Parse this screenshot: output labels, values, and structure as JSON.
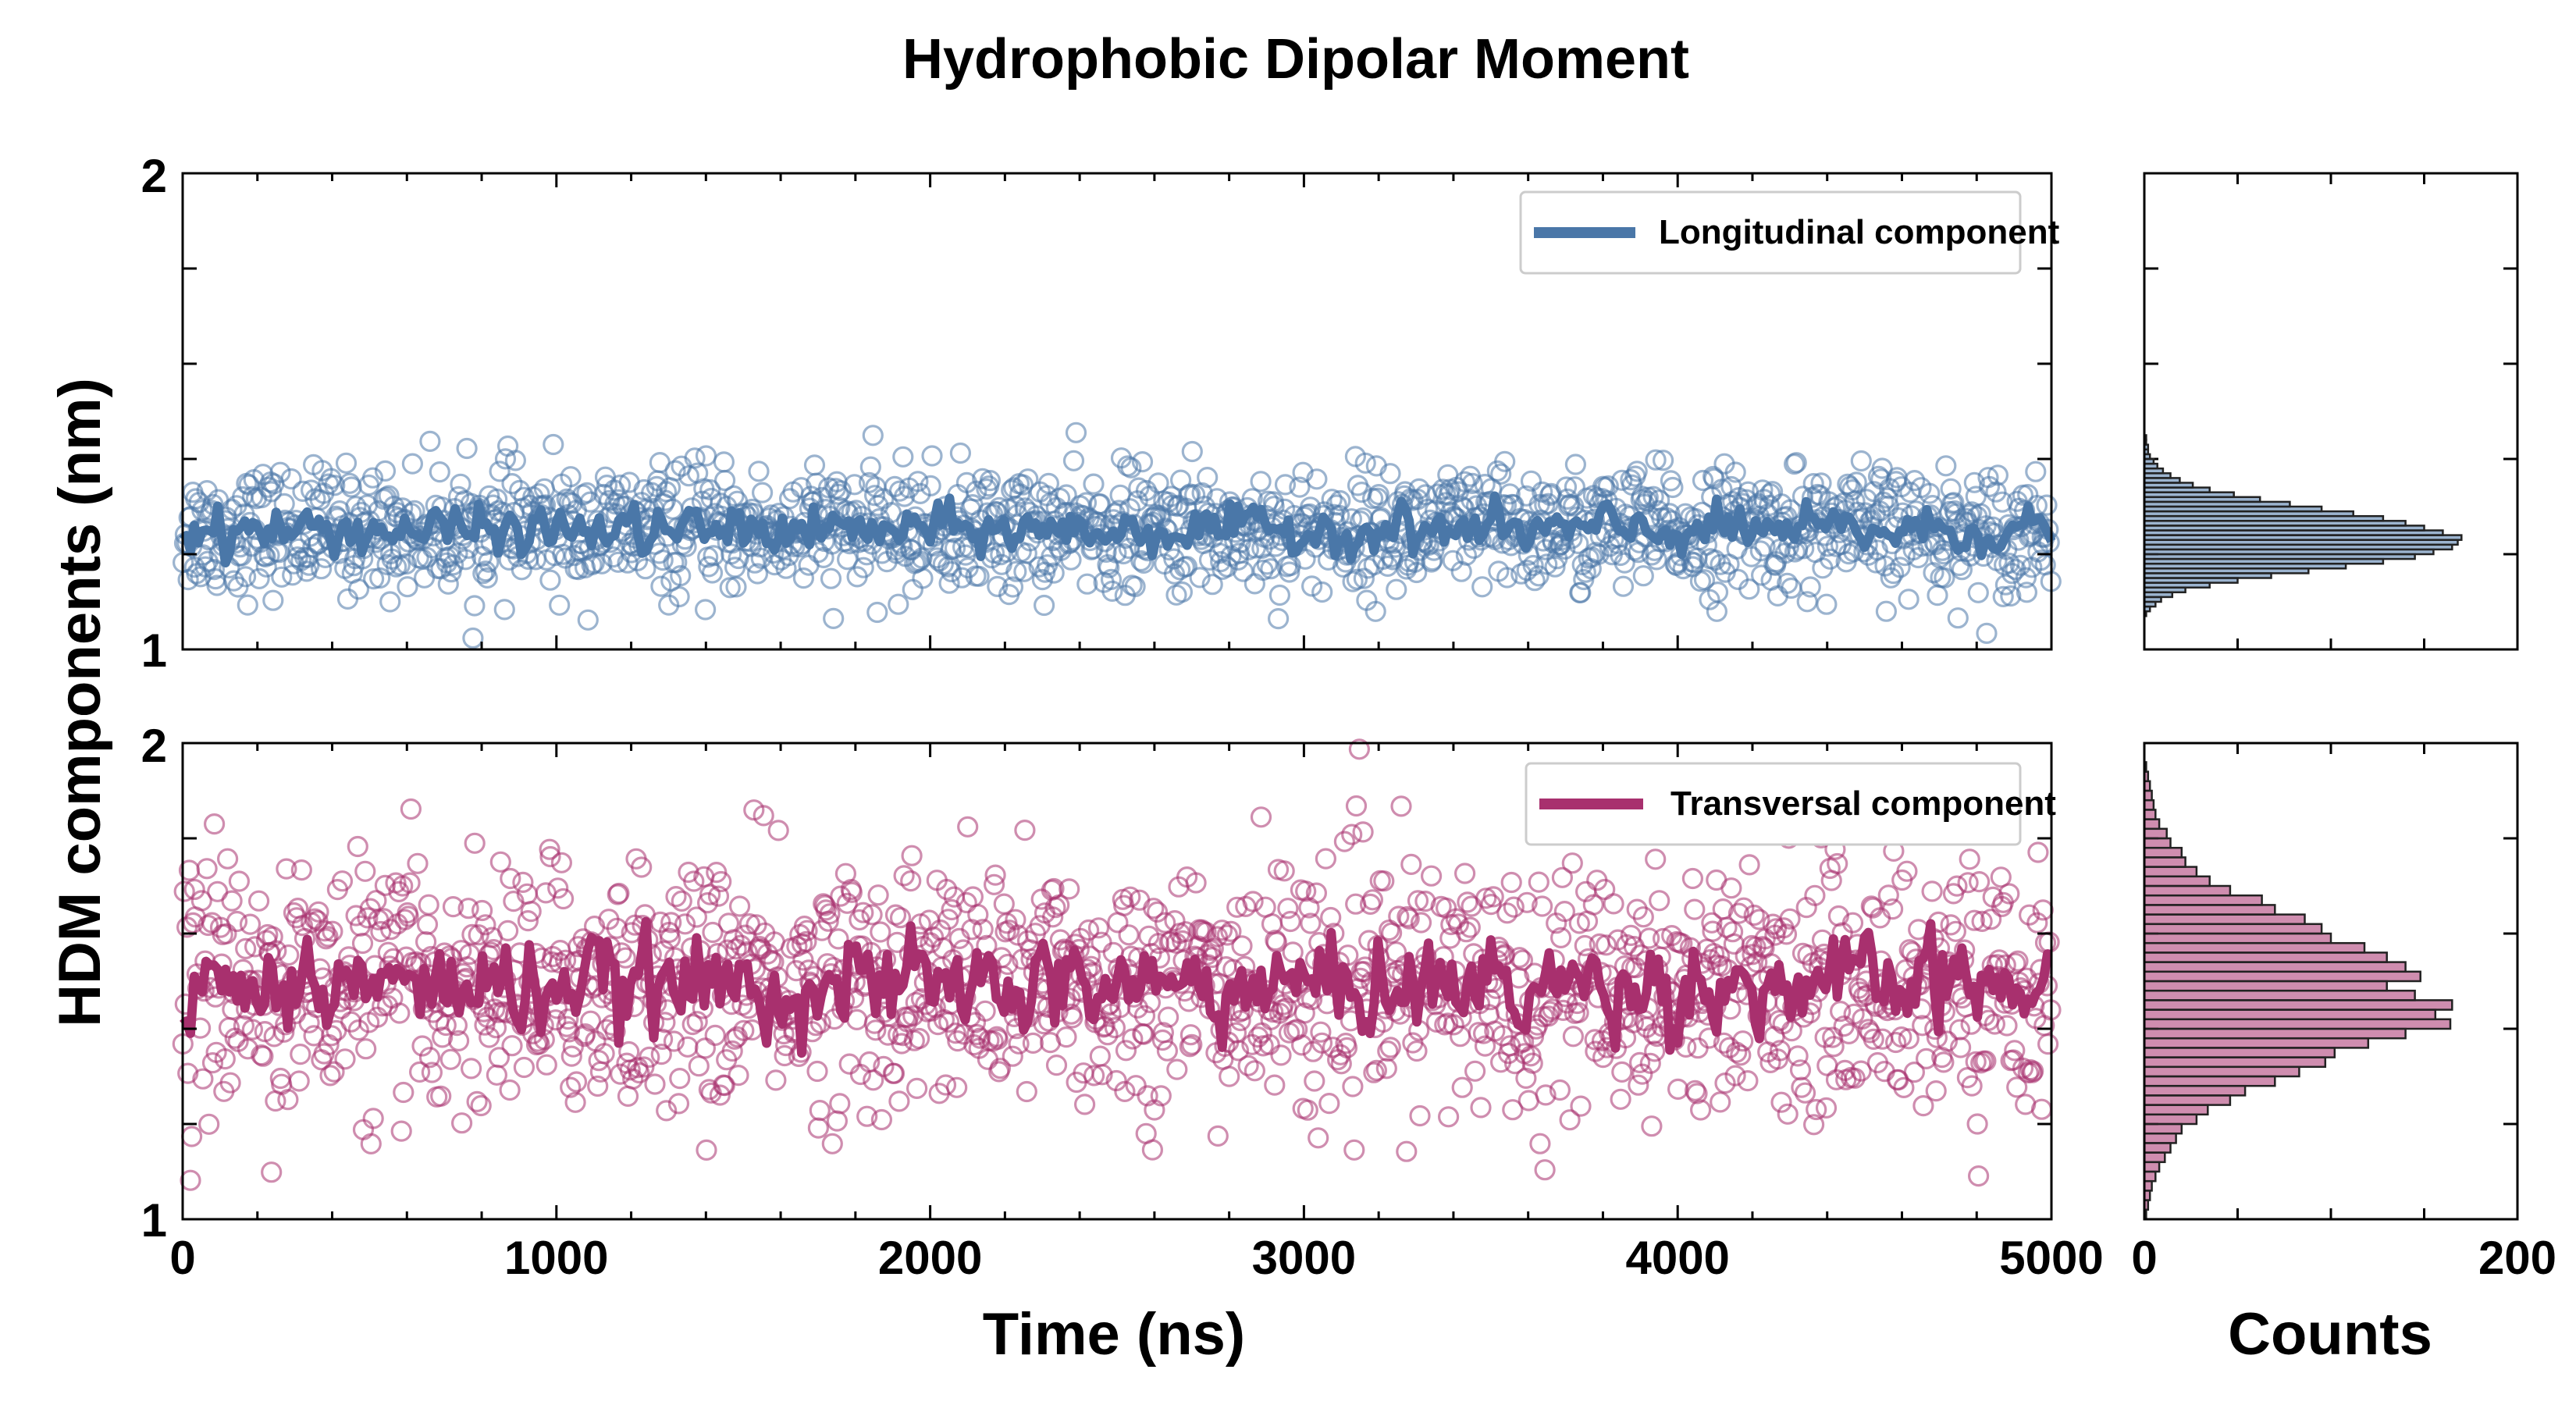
{
  "chart_data": {
    "title": "Hydrophobic Dipolar Moment",
    "ylabel": "HDM components (nm)",
    "colors": {
      "longitudinal": "#4a77a8",
      "transversal": "#a8306e"
    },
    "panels": [
      {
        "id": "longitudinal",
        "type": "scatter+line",
        "series_label": "Longitudinal component",
        "legend_position": "top-right",
        "x_range": [
          0,
          5000
        ],
        "ylim": [
          1,
          2
        ],
        "y_ticks": [
          "1",
          "2"
        ],
        "mean": 1.25,
        "scatter_sd": 0.065,
        "line_sd": 0.022,
        "n_points": 1500,
        "y_minor_ticks": [
          1.2,
          1.4,
          1.6,
          1.8
        ]
      },
      {
        "id": "transversal",
        "type": "scatter+line",
        "series_label": "Transversal component",
        "legend_position": "top-right",
        "x_range": [
          0,
          5000
        ],
        "ylim": [
          1,
          2
        ],
        "y_ticks": [
          "1",
          "2"
        ],
        "mean": 1.49,
        "scatter_sd": 0.13,
        "line_sd": 0.045,
        "n_points": 1500,
        "y_minor_ticks": [
          1.2,
          1.4,
          1.6,
          1.8
        ]
      }
    ],
    "x_ticks": [
      "0",
      "1000",
      "2000",
      "3000",
      "4000",
      "5000"
    ],
    "xlabel": "Time (ns)",
    "histograms": [
      {
        "id": "longitudinal",
        "type": "histogram-horizontal",
        "xlim": [
          0,
          200
        ],
        "bin_centers": [
          1.005,
          1.015,
          1.025,
          1.035,
          1.045,
          1.055,
          1.065,
          1.075,
          1.085,
          1.095,
          1.105,
          1.115,
          1.125,
          1.135,
          1.145,
          1.155,
          1.165,
          1.175,
          1.185,
          1.195,
          1.205,
          1.215,
          1.225,
          1.235,
          1.245,
          1.255,
          1.265,
          1.275,
          1.285,
          1.295,
          1.305,
          1.315,
          1.325,
          1.335,
          1.345,
          1.355,
          1.365,
          1.375,
          1.385,
          1.395,
          1.405,
          1.415,
          1.425,
          1.435,
          1.445,
          1.455,
          1.465,
          1.475,
          1.485,
          1.495
        ],
        "counts": [
          0,
          0,
          0,
          0,
          0,
          0,
          0,
          1,
          3,
          6,
          9,
          15,
          22,
          35,
          50,
          68,
          88,
          108,
          128,
          145,
          155,
          165,
          168,
          170,
          160,
          150,
          140,
          128,
          112,
          95,
          78,
          62,
          48,
          35,
          26,
          19,
          14,
          10,
          7,
          5,
          3,
          2,
          2,
          1,
          1,
          0,
          0,
          0,
          0,
          0
        ]
      },
      {
        "id": "transversal",
        "type": "histogram-horizontal",
        "xlim": [
          0,
          200
        ],
        "bin_centers": [
          1.01,
          1.03,
          1.05,
          1.07,
          1.09,
          1.11,
          1.13,
          1.15,
          1.17,
          1.19,
          1.21,
          1.23,
          1.25,
          1.27,
          1.29,
          1.31,
          1.33,
          1.35,
          1.37,
          1.39,
          1.41,
          1.43,
          1.45,
          1.47,
          1.49,
          1.51,
          1.53,
          1.55,
          1.57,
          1.59,
          1.61,
          1.63,
          1.65,
          1.67,
          1.69,
          1.71,
          1.73,
          1.75,
          1.77,
          1.79,
          1.81,
          1.83,
          1.85,
          1.87,
          1.89,
          1.91,
          1.93,
          1.95,
          1.97,
          1.99
        ],
        "counts": [
          1,
          2,
          3,
          4,
          6,
          8,
          11,
          14,
          17,
          20,
          28,
          34,
          46,
          54,
          70,
          83,
          97,
          102,
          120,
          140,
          164,
          156,
          165,
          145,
          130,
          148,
          140,
          130,
          118,
          100,
          95,
          86,
          70,
          63,
          46,
          35,
          28,
          22,
          20,
          14,
          12,
          8,
          6,
          5,
          4,
          3,
          2,
          1,
          0,
          0
        ]
      }
    ],
    "hist_x_ticks": [
      "0",
      "200"
    ],
    "hist_xlabel": "Counts"
  }
}
